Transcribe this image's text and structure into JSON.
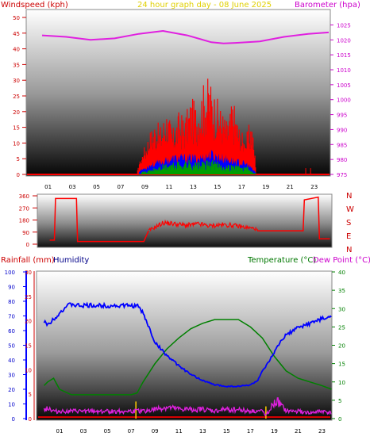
{
  "chart_data": [
    {
      "type": "line",
      "title": "24 hour graph day - 08 June 2025",
      "left_axis_label": "Windspeed (kph)",
      "right_axis_label": "Barometer (hpa)",
      "x_ticks": [
        "01",
        "03",
        "05",
        "07",
        "09",
        "11",
        "13",
        "15",
        "17",
        "19",
        "21",
        "23"
      ],
      "left_ticks": [
        "0",
        "5",
        "10",
        "15",
        "20",
        "25",
        "30",
        "35",
        "40",
        "45",
        "50"
      ],
      "right_ticks": [
        "975",
        "980",
        "985",
        "990",
        "995",
        "1000",
        "1005",
        "1010",
        "1015",
        "1020",
        "1025"
      ],
      "ylim_left": [
        0,
        50
      ],
      "ylim_right": [
        975,
        1027.5
      ],
      "colors": {
        "gust": "#ff0000",
        "avg": "#0000ff",
        "wind_low": "#00a000",
        "barometer": "#e020e0"
      },
      "barometer": {
        "name": "Barometer",
        "x": [
          0,
          2,
          4,
          6,
          8,
          10,
          12,
          14,
          15,
          16,
          18,
          20,
          22,
          23.7
        ],
        "values": [
          1021.5,
          1021,
          1020,
          1020.5,
          1022,
          1023,
          1021.5,
          1019.2,
          1018.8,
          1019,
          1019.5,
          1021,
          1022,
          1022.5
        ]
      },
      "gust_envelope": {
        "name": "Gust",
        "x": [
          7.9,
          8.3,
          8.8,
          9.3,
          9.8,
          10.3,
          10.8,
          11.3,
          11.8,
          12.3,
          12.8,
          13.3,
          13.8,
          14.3,
          14.8,
          15.3,
          15.8,
          16.3,
          16.8,
          17.3,
          17.7
        ],
        "values": [
          1,
          5,
          9,
          12,
          11,
          15,
          10,
          14,
          13,
          17,
          16,
          20,
          22,
          18,
          15,
          12,
          17,
          11,
          8,
          13,
          2
        ]
      },
      "gust_base": {
        "name": "Gust base",
        "x": [
          8,
          9,
          10,
          11,
          12,
          13,
          14,
          15,
          16,
          17,
          17.7
        ],
        "values": [
          3,
          8,
          9,
          9,
          10,
          10,
          11,
          10,
          9,
          9,
          1
        ]
      },
      "avg_wind": {
        "name": "Average",
        "x": [
          8,
          9,
          10,
          11,
          12,
          13,
          14,
          15,
          16,
          17,
          17.7
        ],
        "values": [
          1,
          3,
          4,
          5,
          5,
          5,
          6,
          5,
          4,
          3,
          0.5
        ]
      },
      "wind_low": {
        "name": "Low",
        "x": [
          8,
          9,
          10,
          11,
          12,
          13,
          14,
          15,
          16,
          17,
          17.7
        ],
        "values": [
          0.3,
          1,
          2,
          2.5,
          3,
          2.5,
          3,
          2,
          2,
          1.5,
          0.2
        ]
      },
      "late_gusts": {
        "x": [
          21.8,
          22.2
        ],
        "values": [
          2,
          2
        ]
      }
    },
    {
      "type": "line",
      "axis_label_chars": [
        "N",
        "W",
        "S",
        "E",
        "N"
      ],
      "ticks": [
        "360",
        "270",
        "180",
        "90",
        "0"
      ],
      "ylim": [
        0,
        360
      ],
      "color": "#ff0000",
      "direction": {
        "x": [
          -0.3,
          0.1,
          0.2,
          2.0,
          2.1,
          7.7,
          7.8,
          8.2,
          9.5,
          10.5,
          11.5,
          12.5,
          13.5,
          14.5,
          15.5,
          16.5,
          17.5,
          17.6,
          19.5,
          19.6,
          21.5,
          21.6,
          22.8,
          22.9,
          23.8
        ],
        "values": [
          30,
          30,
          340,
          340,
          20,
          20,
          20,
          100,
          160,
          150,
          140,
          150,
          135,
          145,
          140,
          125,
          115,
          100,
          100,
          100,
          100,
          330,
          350,
          40,
          40
        ]
      }
    },
    {
      "type": "line",
      "left_label_1": "Rainfall (mm)",
      "left_label_2": "Humidity",
      "right_label_1": "Temperature (°C)",
      "right_label_2": "Dew Point (°C)",
      "x_ticks": [
        "01",
        "03",
        "05",
        "07",
        "09",
        "11",
        "13",
        "15",
        "17",
        "19",
        "21",
        "23"
      ],
      "humidity_ticks": [
        "0",
        "10",
        "20",
        "30",
        "40",
        "50",
        "60",
        "70",
        "80",
        "90",
        "100"
      ],
      "rain_ticks": [
        "0",
        "5",
        "10",
        "15",
        "20",
        "25",
        "30"
      ],
      "temp_ticks": [
        "0",
        "5",
        "10",
        "15",
        "20",
        "25",
        "30",
        "35",
        "40"
      ],
      "ylim_humidity": [
        0,
        100
      ],
      "ylim_rain": [
        0,
        30
      ],
      "ylim_temp": [
        0,
        40
      ],
      "colors": {
        "humidity": "#0000ff",
        "temperature": "#008000",
        "dewpoint": "#e020e0",
        "rain": "#ffcc00",
        "rain_accum": "#e00000"
      },
      "humidity": {
        "name": "Humidity",
        "x": [
          -0.3,
          0,
          0.5,
          1,
          1.5,
          2,
          2.5,
          3,
          4,
          5,
          6,
          7,
          7.5,
          8,
          8.5,
          9,
          10,
          11,
          12,
          13,
          14,
          15,
          16,
          17,
          17.6,
          18,
          18.5,
          19,
          19.5,
          20,
          21,
          22,
          23,
          23.8
        ],
        "values": [
          66,
          64,
          68,
          72,
          76,
          78,
          77,
          77,
          77,
          77,
          77,
          77,
          77,
          72,
          62,
          52,
          43,
          36,
          30,
          26,
          23,
          22,
          22,
          23,
          26,
          32,
          38,
          45,
          52,
          57,
          62,
          65,
          68,
          69
        ]
      },
      "temperature": {
        "name": "Temperature",
        "x": [
          -0.3,
          0,
          0.5,
          1,
          2,
          3,
          4,
          5,
          6,
          7,
          7.5,
          8,
          9,
          10,
          11,
          12,
          13,
          14,
          15,
          16,
          17,
          18,
          19,
          20,
          21,
          22,
          23,
          23.8
        ],
        "values": [
          9,
          10,
          11,
          8,
          6.5,
          6.5,
          6.5,
          6.5,
          6.5,
          6.5,
          7,
          10,
          15,
          19,
          22,
          24.5,
          26,
          27,
          27,
          27,
          25,
          22,
          17,
          13,
          11,
          10,
          9,
          8
        ]
      },
      "dewpoint": {
        "name": "Dew Point",
        "x": [
          -0.3,
          0,
          0.5,
          1,
          2,
          3,
          4,
          5,
          6,
          7,
          8,
          9,
          10,
          11,
          12,
          13,
          14,
          15,
          16,
          17,
          18,
          18.3,
          18.6,
          19,
          19.3,
          19.7,
          20,
          21,
          22,
          23,
          23.8
        ],
        "values": [
          2.5,
          3,
          2,
          2,
          2,
          2,
          2,
          2,
          2,
          2,
          2,
          2.5,
          3,
          2.5,
          2.5,
          2.5,
          2,
          2.5,
          2.5,
          2,
          2,
          1,
          2.5,
          4,
          4.5,
          3,
          2,
          2,
          1.5,
          2,
          1.5
        ]
      },
      "rain_events": {
        "x": [
          7.4,
          18.3
        ],
        "values": [
          3.5,
          2.5
        ]
      },
      "rain_accum_value": 0.3
    }
  ]
}
